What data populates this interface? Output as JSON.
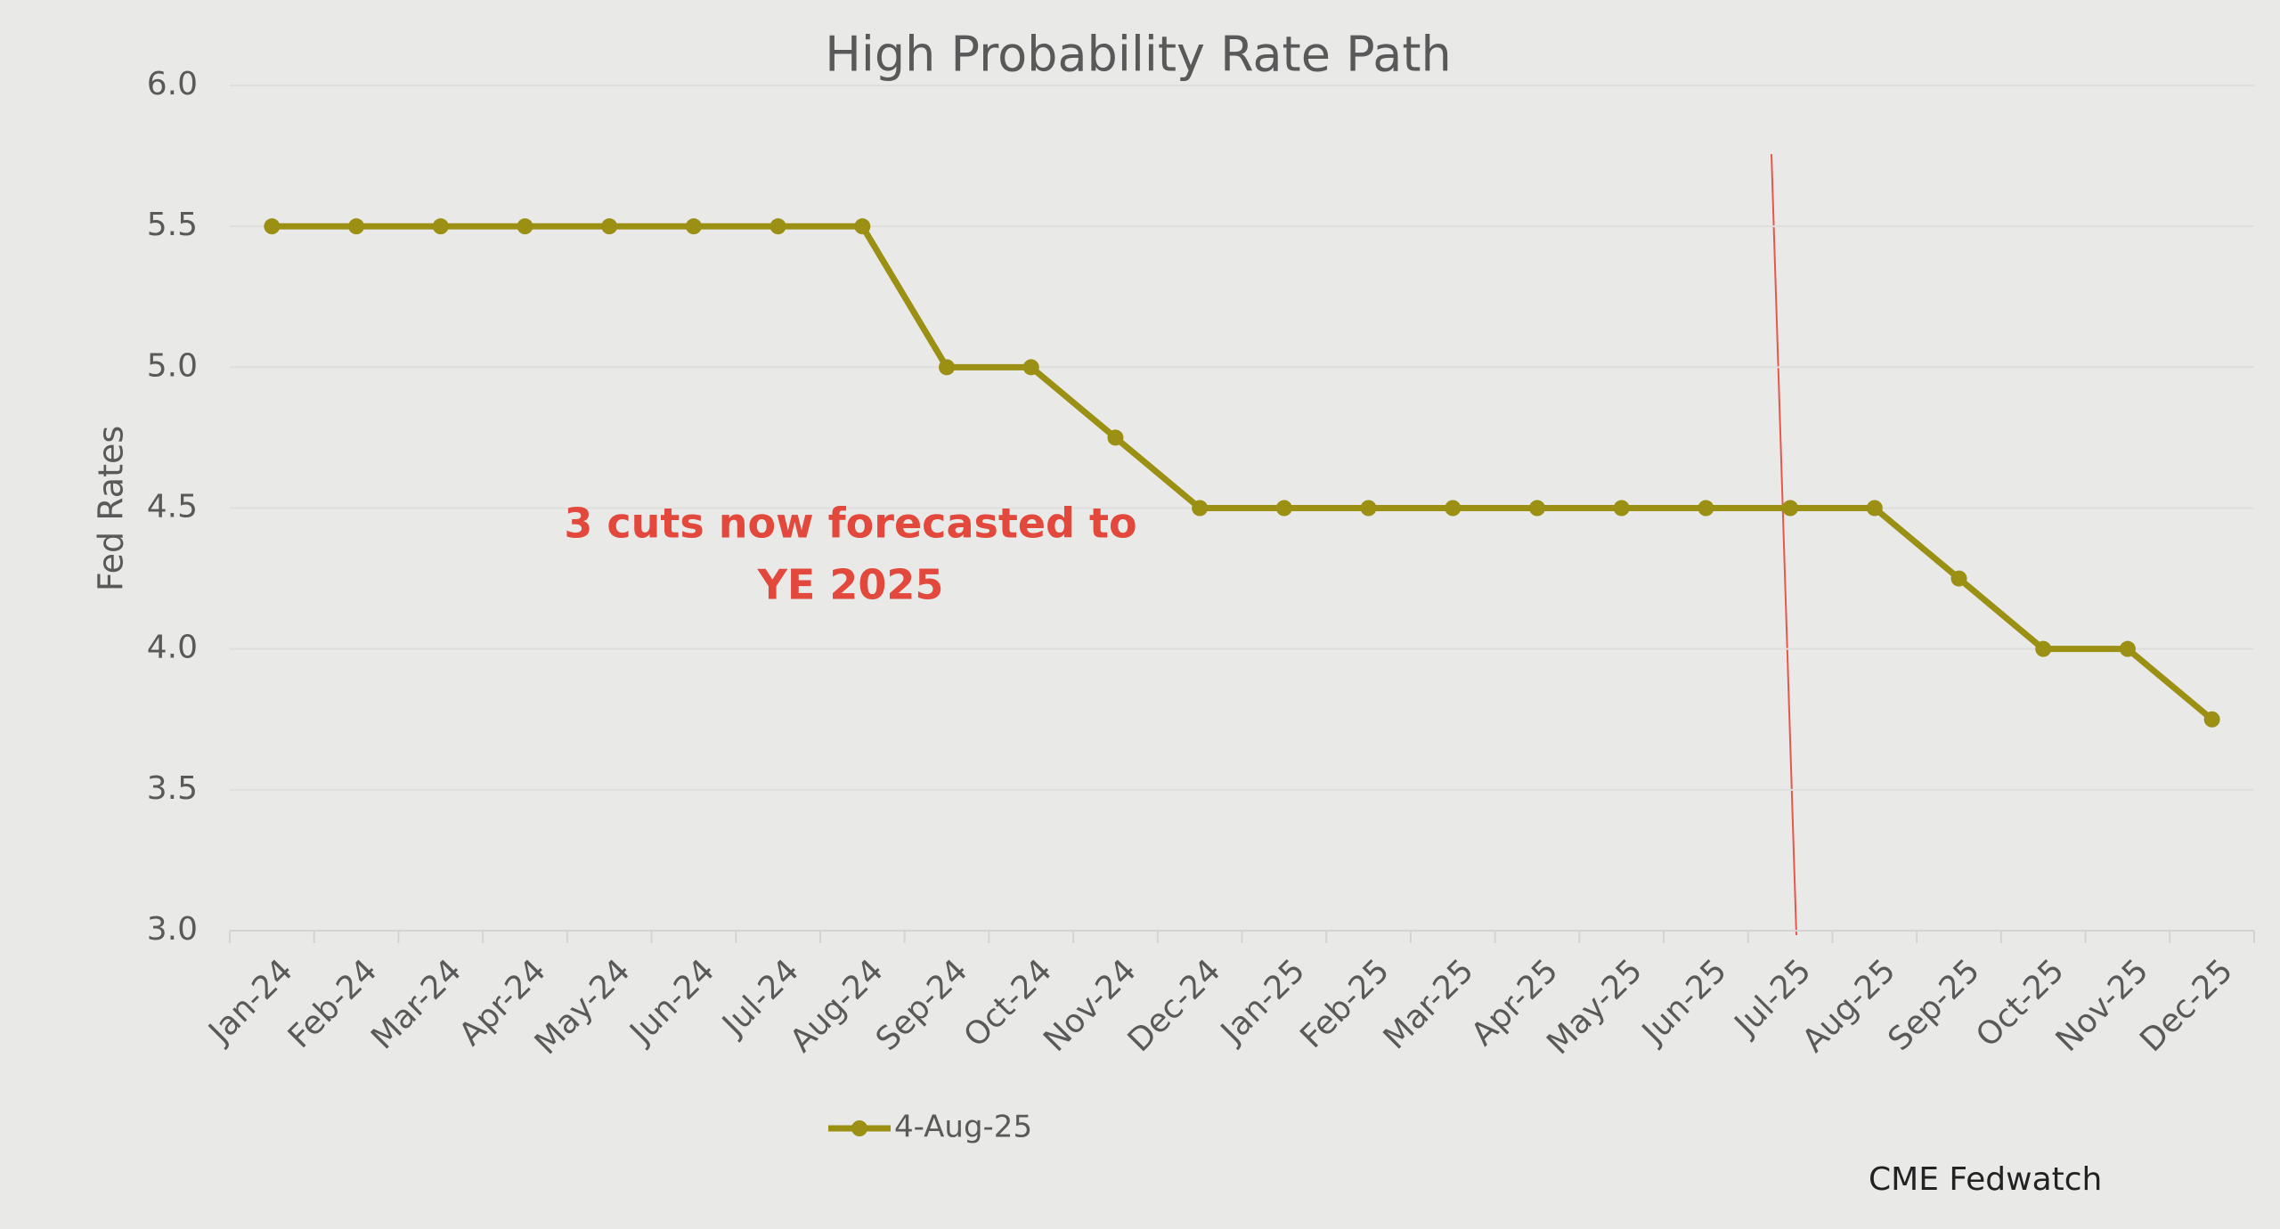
{
  "chart_data": {
    "type": "line",
    "title": "High Probability Rate Path",
    "y_label": "Fed Rates",
    "categories": [
      "Jan-24",
      "Feb-24",
      "Mar-24",
      "Apr-24",
      "May-24",
      "Jun-24",
      "Jul-24",
      "Aug-24",
      "Sep-24",
      "Oct-24",
      "Nov-24",
      "Dec-24",
      "Jan-25",
      "Feb-25",
      "Mar-25",
      "Apr-25",
      "May-25",
      "Jun-25",
      "Jul-25",
      "Aug-25",
      "Sep-25",
      "Oct-25",
      "Nov-25",
      "Dec-25"
    ],
    "series": [
      {
        "name": "4-Aug-25",
        "color": "#9b9014",
        "values": [
          5.5,
          5.5,
          5.5,
          5.5,
          5.5,
          5.5,
          5.5,
          5.5,
          5.0,
          5.0,
          4.75,
          4.5,
          4.5,
          4.5,
          4.5,
          4.5,
          4.5,
          4.5,
          4.5,
          4.5,
          4.25,
          4.0,
          4.0,
          3.75
        ]
      }
    ],
    "ylim": [
      3,
      6
    ],
    "yticks": [
      {
        "value": 3,
        "label": "3.0"
      },
      {
        "value": 3.5,
        "label": "3.5"
      },
      {
        "value": 4,
        "label": "4.0"
      },
      {
        "value": 4.5,
        "label": "4.5"
      },
      {
        "value": 5,
        "label": "5.0"
      },
      {
        "value": 5.5,
        "label": "5.5"
      },
      {
        "value": 6,
        "label": "6.0"
      }
    ],
    "grid": true,
    "annotation": [
      "3 cuts now forecasted to",
      "YE  2025"
    ],
    "source": "CME Fedwatch"
  }
}
